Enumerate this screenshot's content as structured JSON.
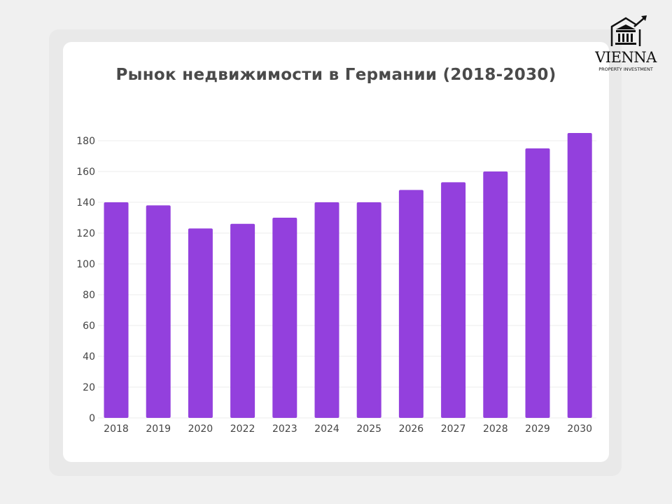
{
  "brand": {
    "name": "VIENNA",
    "subtitle": "PROPERTY INVESTMENT"
  },
  "chart_data": {
    "type": "bar",
    "title": "Рынок недвижимости в Германии (2018-2030)",
    "categories": [
      "2018",
      "2019",
      "2020",
      "2022",
      "2023",
      "2024",
      "2025",
      "2026",
      "2027",
      "2028",
      "2029",
      "2030"
    ],
    "values": [
      140,
      138,
      123,
      126,
      130,
      140,
      140,
      148,
      153,
      160,
      175,
      185
    ],
    "ylim": [
      0,
      180
    ],
    "yticks": [
      0,
      20,
      40,
      60,
      80,
      100,
      120,
      140,
      160,
      180
    ],
    "grid": true,
    "bar_color": "#9340dd",
    "xlabel": "",
    "ylabel": ""
  }
}
